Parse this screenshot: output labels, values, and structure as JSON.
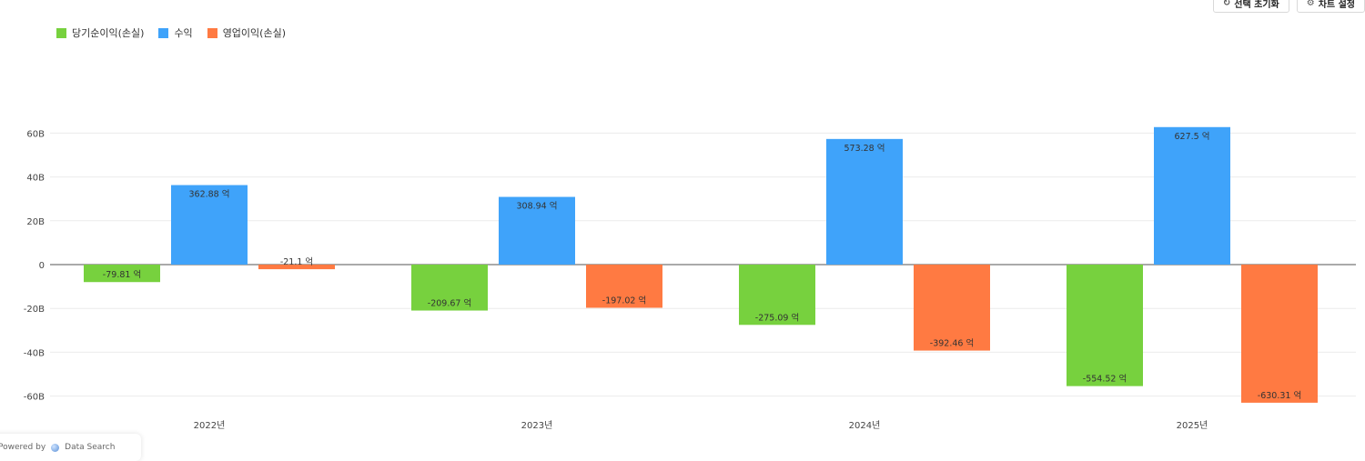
{
  "toolbar": {
    "reset_label": "선택 초기화",
    "settings_label": "차트 설정"
  },
  "colors": {
    "net_income": "#77d13e",
    "revenue": "#3fa3fa",
    "operating_income": "#ff7a42"
  },
  "footer": {
    "left_text": "Powered by",
    "brand_text": "Data Search"
  },
  "chart_data": {
    "type": "bar",
    "categories": [
      "2022년",
      "2023년",
      "2024년",
      "2025년"
    ],
    "series": [
      {
        "name": "당기순이익(손실)",
        "values": [
          -7.981,
          -20.967,
          -27.509,
          -55.452
        ],
        "labels": [
          "-79.81 억",
          "-209.67 억",
          "-275.09 억",
          "-554.52 억"
        ],
        "color": "#77d13e"
      },
      {
        "name": "수익",
        "values": [
          36.288,
          30.894,
          57.328,
          62.75
        ],
        "labels": [
          "362.88 억",
          "308.94 억",
          "573.28 억",
          "627.5 억"
        ],
        "color": "#3fa3fa"
      },
      {
        "name": "영업이익(손실)",
        "values": [
          -2.11,
          -19.702,
          -39.246,
          -63.031
        ],
        "labels": [
          "-21.1 억",
          "-197.02 억",
          "-392.46 억",
          "-630.31 억"
        ],
        "color": "#ff7a42"
      }
    ],
    "yticks": [
      60,
      40,
      20,
      0,
      -20,
      -40,
      -60
    ],
    "ytick_labels": [
      "60B",
      "40B",
      "20B",
      "0",
      "-20B",
      "-40B",
      "-60B"
    ],
    "ylim": [
      -64,
      64
    ],
    "grid": true,
    "legend": "top-left",
    "title": "",
    "xlabel": "",
    "ylabel": ""
  }
}
